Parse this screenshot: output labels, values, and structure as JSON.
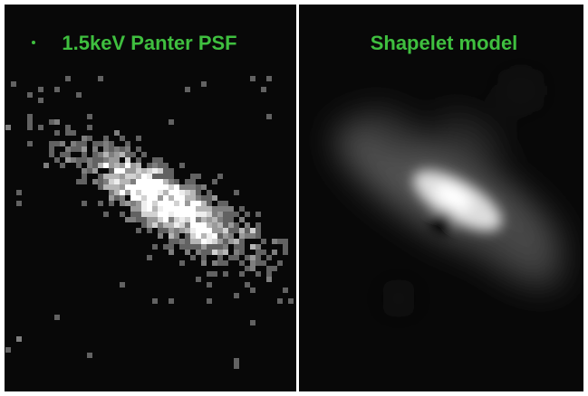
{
  "panels": [
    {
      "title": "1.5keV Panter PSF"
    },
    {
      "title": "Shapelet model"
    }
  ]
}
